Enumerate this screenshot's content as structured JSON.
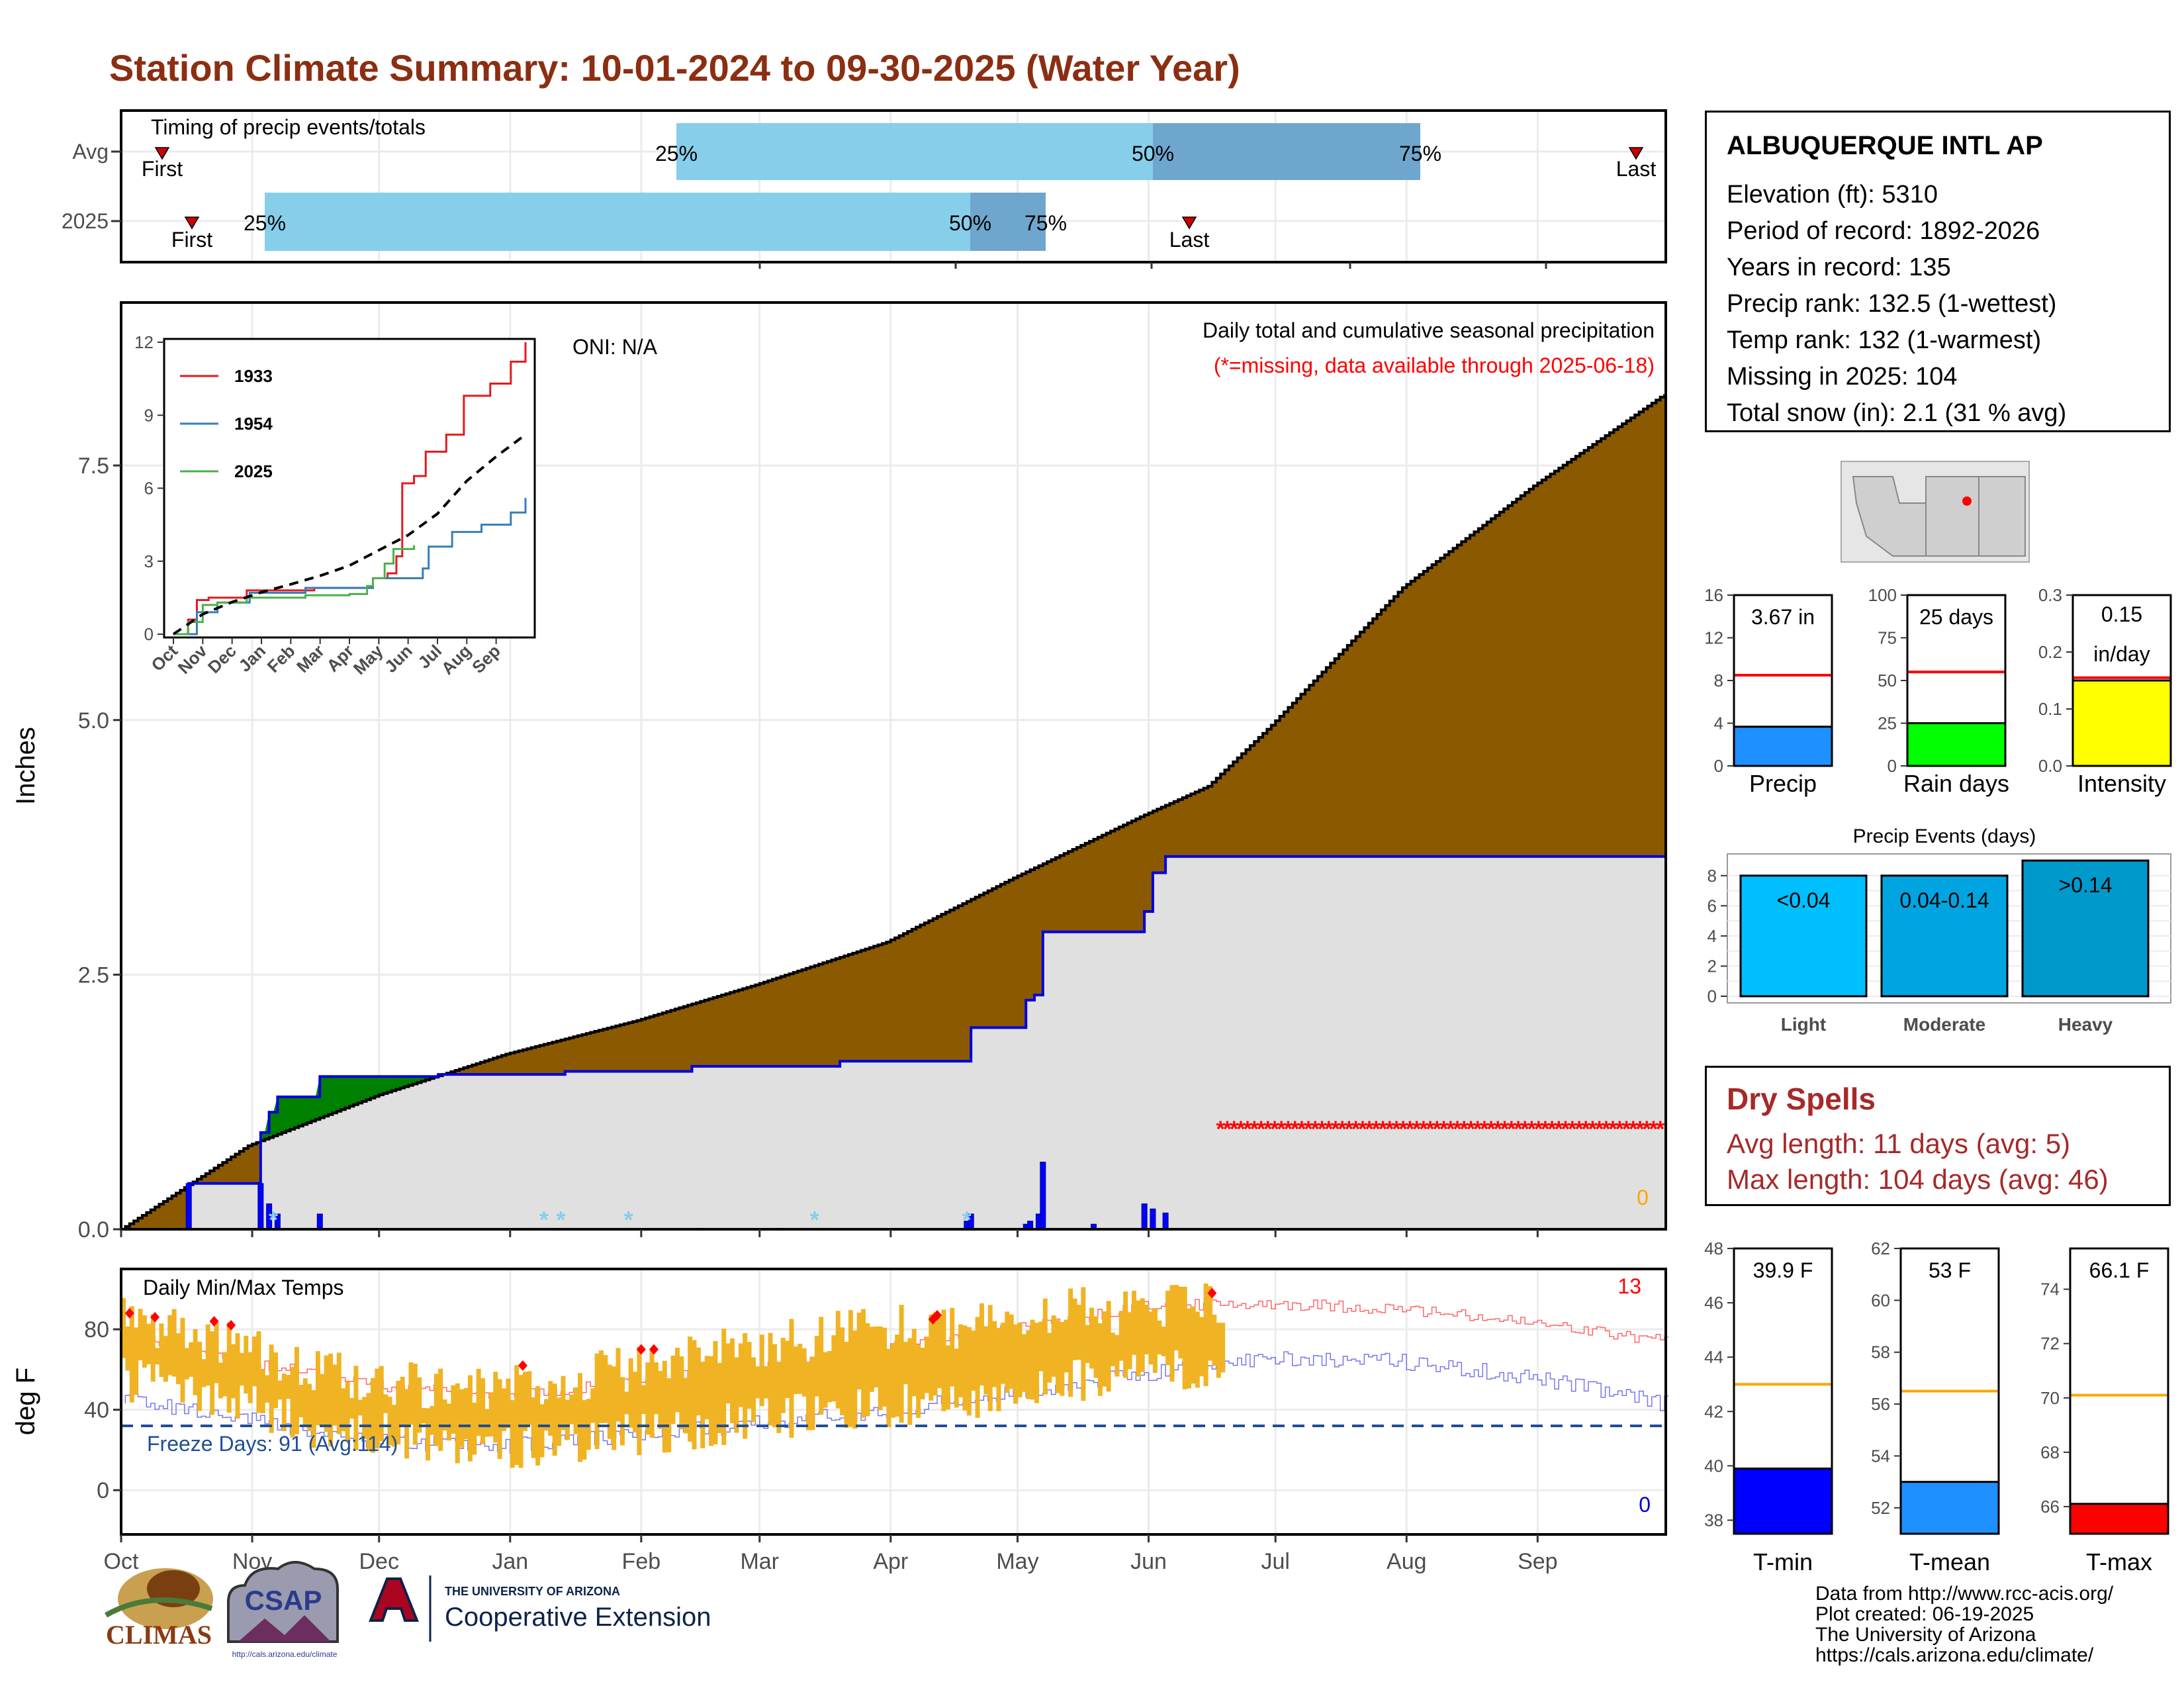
{
  "title": "Station Climate Summary: 10-01-2024 to 09-30-2025 (Water Year)",
  "colors": {
    "title": "#8b2e12",
    "fill_cumulative": "#8b5a00",
    "fill_current": "#e0e0e0",
    "line_current": "#0000dd",
    "fill_above_avg": "#008000",
    "temp_bar": "#f0b323",
    "missing": "#ff0000",
    "timing_light": "#87ceeb",
    "timing_dark": "#6ea6cd",
    "precip_bar": "#1e90ff",
    "raindays_bar": "#00ff00",
    "intensity_bar": "#ffff00",
    "tmin_bar": "#0000ff",
    "tmean_bar": "#1e90ff",
    "tmax_bar": "#ff0000",
    "light": "#00bfff",
    "moderate": "#00a4e0",
    "heavy": "#0099cc"
  },
  "timing": {
    "label": "Timing of precip events/totals",
    "rows": [
      "Avg",
      "2025"
    ],
    "first_label": "First",
    "last_label": "Last",
    "p25": "25%",
    "p50": "50%",
    "p75": "75%"
  },
  "station": {
    "name": "ALBUQUERQUE INTL AP",
    "lines": [
      "Elevation (ft): 5310",
      "Period of record: 1892-2026",
      "Years in record: 135",
      "Precip rank: 132.5 (1-wettest)",
      "Temp rank: 132 (1-warmest)",
      "Missing in 2025: 104",
      "Total snow (in): 2.1 (31 % avg)"
    ]
  },
  "precip_panel": {
    "subtitle": "Daily total and cumulative seasonal precipitation",
    "missing_note": "(*=missing, data available through 2025-06-18)",
    "oni": "ONI: N/A",
    "ylabel": "Inches",
    "zero_count": "0"
  },
  "inset": {
    "legend": [
      "1933",
      "1954",
      "2025"
    ]
  },
  "temp_panel": {
    "title": "Daily Min/Max Temps",
    "ylabel": "deg F",
    "freeze": "Freeze Days: 91 (Avg:114)",
    "count_high": "13",
    "count_low": "0"
  },
  "months": [
    "Oct",
    "Nov",
    "Dec",
    "Jan",
    "Feb",
    "Mar",
    "Apr",
    "May",
    "Jun",
    "Jul",
    "Aug",
    "Sep"
  ],
  "summary_bars": {
    "precip": {
      "label": "Precip",
      "value_text": "3.67 in"
    },
    "raindays": {
      "label": "Rain days",
      "value_text": "25 days"
    },
    "intensity": {
      "label": "Intensity",
      "value_text_1": "0.15",
      "value_text_2": "in/day"
    }
  },
  "events": {
    "title": "Precip Events (days)",
    "categories": [
      "Light",
      "Moderate",
      "Heavy"
    ],
    "bar_labels": [
      "<0.04",
      "0.04-0.14",
      ">0.14"
    ]
  },
  "dry_spells": {
    "title": "Dry Spells",
    "avg": "Avg length: 11 days (avg: 5)",
    "max": "Max length: 104 days (avg: 46)"
  },
  "temp_bars": {
    "tmin": {
      "label": "T-min",
      "value_text": "39.9 F"
    },
    "tmean": {
      "label": "T-mean",
      "value_text": "53 F"
    },
    "tmax": {
      "label": "T-max",
      "value_text": "66.1 F"
    }
  },
  "credits": [
    "Data from http://www.rcc-acis.org/",
    "Plot created: 06-19-2025",
    "The University of Arizona",
    "https://cals.arizona.edu/climate/"
  ],
  "logos": {
    "climas": "CLIMAS",
    "csap": "CSAP",
    "csap_url": "http://cals.arizona.edu/climate",
    "ua_line1": "THE UNIVERSITY OF ARIZONA",
    "ua_line2": "Cooperative Extension"
  },
  "chart_data": [
    {
      "type": "area",
      "name": "cumulative_precip",
      "x_domain_days": [
        0,
        365
      ],
      "ylim": [
        0,
        9.1
      ],
      "yticks": [
        0.0,
        2.5,
        5.0,
        7.5
      ],
      "avg_cumulative": {
        "x": [
          0,
          30,
          61,
          91,
          122,
          150,
          181,
          211,
          242,
          257,
          272,
          303,
          334,
          365
        ],
        "y": [
          0,
          0.82,
          1.32,
          1.72,
          2.05,
          2.4,
          2.82,
          3.45,
          4.07,
          4.35,
          4.95,
          6.3,
          7.3,
          8.2
        ]
      },
      "current_cumulative": {
        "x": [
          0,
          16,
          16,
          33,
          33,
          35,
          35,
          37,
          37,
          47,
          47,
          75,
          75,
          105,
          105,
          135,
          135,
          170,
          170,
          201,
          201,
          214,
          214,
          216,
          216,
          218,
          218,
          242,
          242,
          244,
          244,
          247,
          247,
          365
        ],
        "y": [
          0,
          0,
          0.45,
          0.45,
          0.95,
          0.95,
          1.15,
          1.15,
          1.3,
          1.3,
          1.5,
          1.5,
          1.52,
          1.52,
          1.55,
          1.55,
          1.6,
          1.6,
          1.65,
          1.65,
          1.98,
          1.98,
          2.25,
          2.25,
          2.3,
          2.3,
          2.92,
          2.92,
          3.12,
          3.12,
          3.5,
          3.5,
          3.66,
          3.66
        ]
      },
      "daily_precip": [
        [
          16,
          0.45
        ],
        [
          33,
          0.45
        ],
        [
          35,
          0.25
        ],
        [
          37,
          0.15
        ],
        [
          47,
          0.15
        ],
        [
          102,
          0.01
        ],
        [
          137,
          0.01
        ],
        [
          156,
          0.01
        ],
        [
          200,
          0.08
        ],
        [
          201,
          0.15
        ],
        [
          214,
          0.05
        ],
        [
          215,
          0.08
        ],
        [
          217,
          0.15
        ],
        [
          218,
          0.66
        ],
        [
          230,
          0.05
        ],
        [
          242,
          0.25
        ],
        [
          244,
          0.2
        ],
        [
          247,
          0.16
        ]
      ],
      "snow_days": [
        36,
        100,
        104,
        120,
        164,
        200
      ],
      "missing_x": [
        260,
        365
      ],
      "missing_y": 1.0
    },
    {
      "type": "line",
      "name": "inset_cumulative",
      "xlabels": [
        "Oct",
        "Nov",
        "Dec",
        "Jan",
        "Feb",
        "Mar",
        "Apr",
        "May",
        "Jun",
        "Jul",
        "Aug",
        "Sep"
      ],
      "ylim": [
        0,
        12
      ],
      "yticks": [
        0,
        3,
        6,
        9,
        12
      ],
      "series": [
        {
          "name": "1933",
          "x": [
            0,
            0.5,
            0.8,
            1.2,
            2.5,
            4.8,
            6.8,
            7.3,
            7.6,
            7.8,
            8.2,
            8.6,
            9.3,
            9.9,
            10.8,
            11.5,
            12
          ],
          "y": [
            0,
            0.6,
            1.4,
            1.5,
            1.8,
            1.9,
            2.3,
            2.5,
            3.2,
            6.2,
            6.5,
            7.5,
            8.2,
            9.8,
            10.3,
            11.2,
            12
          ]
        },
        {
          "name": "1954",
          "x": [
            0,
            0.8,
            1.5,
            2.6,
            4.5,
            6.8,
            8.5,
            8.7,
            9.5,
            10.5,
            11.5,
            12
          ],
          "y": [
            0,
            0.9,
            1.3,
            1.7,
            1.9,
            2.3,
            2.7,
            3.6,
            4.2,
            4.5,
            5.0,
            5.6
          ]
        },
        {
          "name": "2025",
          "x": [
            0,
            0.5,
            1.0,
            1.5,
            2.5,
            3.6,
            4.5,
            5.5,
            6.0,
            6.6,
            6.8,
            7.2,
            7.5,
            8.2
          ],
          "y": [
            0,
            0.5,
            1.2,
            1.3,
            1.5,
            1.5,
            1.6,
            1.6,
            1.65,
            1.98,
            2.3,
            2.9,
            3.5,
            3.66
          ]
        },
        {
          "name": "avg",
          "x": [
            0,
            1,
            2,
            3,
            4,
            5,
            6,
            7,
            8,
            9,
            10,
            11,
            12
          ],
          "y": [
            0,
            0.82,
            1.32,
            1.72,
            2.05,
            2.4,
            2.82,
            3.45,
            4.07,
            4.95,
            6.3,
            7.3,
            8.2
          ]
        }
      ]
    },
    {
      "type": "bar",
      "name": "daily_temps",
      "ylim": [
        -22,
        110
      ],
      "yticks": [
        0,
        40,
        80
      ],
      "avg_max": {
        "x": [
          0,
          30,
          60,
          91,
          122,
          150,
          181,
          211,
          242,
          272,
          303,
          334,
          365
        ],
        "y": [
          77,
          64,
          52,
          47,
          54,
          62,
          71,
          80,
          91,
          93,
          90,
          83,
          74
        ]
      },
      "avg_min": {
        "x": [
          0,
          30,
          60,
          91,
          122,
          150,
          181,
          211,
          242,
          272,
          303,
          334,
          365
        ],
        "y": [
          46,
          35,
          24,
          22,
          27,
          33,
          40,
          48,
          58,
          66,
          64,
          56,
          43
        ]
      },
      "obs_max": {
        "x": [
          0,
          15,
          30,
          45,
          60,
          75,
          91,
          105,
          122,
          136,
          150,
          165,
          181,
          196,
          211,
          226,
          242,
          260
        ],
        "y": [
          88,
          78,
          70,
          58,
          55,
          52,
          52,
          55,
          62,
          68,
          72,
          76,
          82,
          80,
          84,
          90,
          88,
          95
        ]
      },
      "obs_min": {
        "x": [
          0,
          15,
          30,
          45,
          60,
          75,
          91,
          105,
          122,
          136,
          150,
          165,
          181,
          196,
          211,
          226,
          242,
          260
        ],
        "y": [
          55,
          50,
          42,
          30,
          28,
          25,
          22,
          22,
          28,
          30,
          35,
          38,
          42,
          45,
          48,
          55,
          60,
          62
        ]
      },
      "freeze_line": 32,
      "record_highs": [
        [
          2,
          88
        ],
        [
          8,
          86
        ],
        [
          22,
          84
        ],
        [
          26,
          82
        ],
        [
          95,
          62
        ],
        [
          123,
          70
        ],
        [
          126,
          70
        ],
        [
          192,
          85
        ],
        [
          193,
          87
        ],
        [
          258,
          98
        ]
      ]
    },
    {
      "type": "bar",
      "name": "precip_total",
      "value": 3.67,
      "avg": 8.5,
      "ylim": [
        0,
        16
      ],
      "yticks": [
        0,
        4,
        8,
        12,
        16
      ]
    },
    {
      "type": "bar",
      "name": "rain_days",
      "value": 25,
      "avg": 55,
      "ylim": [
        0,
        100
      ],
      "yticks": [
        0,
        25,
        50,
        75,
        100
      ]
    },
    {
      "type": "bar",
      "name": "intensity",
      "value": 0.15,
      "avg": 0.155,
      "ylim": [
        0,
        0.3
      ],
      "yticks": [
        0.0,
        0.1,
        0.2,
        0.3
      ]
    },
    {
      "type": "bar",
      "name": "precip_events",
      "categories": [
        "Light",
        "Moderate",
        "Heavy"
      ],
      "values": [
        8,
        8,
        9
      ],
      "ylim": [
        0,
        9
      ],
      "yticks": [
        0,
        2,
        4,
        6,
        8
      ]
    },
    {
      "type": "bar",
      "name": "t_min",
      "value": 39.9,
      "avg": 43.0,
      "ylim": [
        37.5,
        48
      ],
      "yticks": [
        38,
        40,
        42,
        44,
        46,
        48
      ]
    },
    {
      "type": "bar",
      "name": "t_mean",
      "value": 53.0,
      "avg": 56.5,
      "ylim": [
        51,
        62
      ],
      "yticks": [
        52,
        54,
        56,
        58,
        60,
        62
      ]
    },
    {
      "type": "bar",
      "name": "t_max",
      "value": 66.1,
      "avg": 70.1,
      "ylim": [
        65,
        75.5
      ],
      "yticks": [
        66,
        68,
        70,
        72,
        74
      ]
    }
  ]
}
